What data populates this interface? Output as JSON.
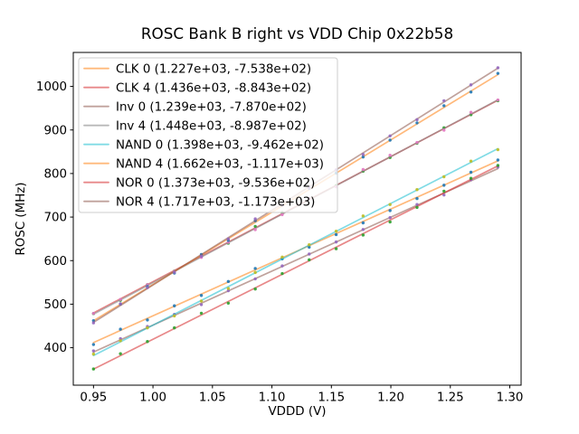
{
  "chart_data": {
    "type": "scatter",
    "title": "ROSC Bank B right vs VDD Chip 0x22b58",
    "xlabel": "VDDD (V)",
    "ylabel": "ROSC (MHz)",
    "xlim": [
      0.933,
      1.3095
    ],
    "ylim": [
      314,
      1078
    ],
    "xticks": [
      0.95,
      1.0,
      1.05,
      1.1,
      1.15,
      1.2,
      1.25,
      1.3
    ],
    "xtick_labels": [
      "0.95",
      "1.00",
      "1.05",
      "1.10",
      "1.15",
      "1.20",
      "1.25",
      "1.30"
    ],
    "yticks": [
      400,
      500,
      600,
      700,
      800,
      900,
      1000
    ],
    "ytick_labels": [
      "400",
      "500",
      "600",
      "700",
      "800",
      "900",
      "1000"
    ],
    "grid": false,
    "legend_position": "upper-left",
    "x_points": {
      "start": 0.95,
      "end": 1.29,
      "count": 16
    },
    "line_opacity": 0.55,
    "marker_opacity": 0.9,
    "axis_color": "#000000",
    "legend_border_color": "#cccccc",
    "series": [
      {
        "name": "CLK 0",
        "label": "CLK 0 (1.227e+03, -7.538e+02)",
        "slope": 1227,
        "intercept": -753.8,
        "line_color": "#ff7f0e",
        "marker_color": "#1f77b4"
      },
      {
        "name": "CLK 4",
        "label": "CLK 4 (1.436e+03, -8.843e+02)",
        "slope": 1436,
        "intercept": -884.3,
        "line_color": "#d62728",
        "marker_color": "#2ca02c"
      },
      {
        "name": "Inv 0",
        "label": "Inv 0 (1.239e+03, -7.870e+02)",
        "slope": 1239,
        "intercept": -787.0,
        "line_color": "#8c564b",
        "marker_color": "#9467bd"
      },
      {
        "name": "Inv 4",
        "label": "Inv 4 (1.448e+03, -8.987e+02)",
        "slope": 1448,
        "intercept": -898.7,
        "line_color": "#7f7f7f",
        "marker_color": "#e377c2"
      },
      {
        "name": "NAND 0",
        "label": "NAND 0 (1.398e+03, -9.462e+02)",
        "slope": 1398,
        "intercept": -946.2,
        "line_color": "#17becf",
        "marker_color": "#bcbd22"
      },
      {
        "name": "NAND 4",
        "label": "NAND 4 (1.662e+03, -1.117e+03)",
        "slope": 1662,
        "intercept": -1117.0,
        "line_color": "#ff7f0e",
        "marker_color": "#1f77b4"
      },
      {
        "name": "NOR 0",
        "label": "NOR 0 (1.373e+03, -9.536e+02)",
        "slope": 1373,
        "intercept": -953.6,
        "line_color": "#d62728",
        "marker_color": "#2ca02c"
      },
      {
        "name": "NOR 4",
        "label": "NOR 4 (1.717e+03, -1.173e+03)",
        "slope": 1717,
        "intercept": -1173.0,
        "line_color": "#8c564b",
        "marker_color": "#9467bd"
      }
    ]
  }
}
